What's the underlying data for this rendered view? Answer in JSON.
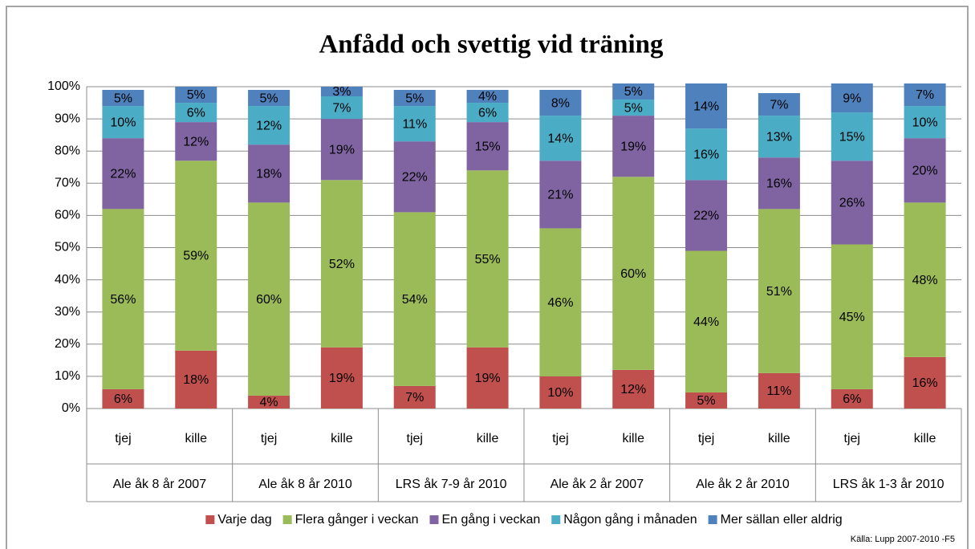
{
  "chart_data": {
    "type": "stacked_bar",
    "title": "Anfådd och svettig vid träning",
    "categories": [
      "tjej",
      "kille",
      "tjej",
      "kille",
      "tjej",
      "kille",
      "tjej",
      "kille",
      "tjej",
      "kille",
      "tjej",
      "kille"
    ],
    "groups": [
      "Ale åk 8 år 2007",
      "Ale åk 8 år 2010",
      "LRS  åk 7-9 år 2010",
      "Ale åk 2 år 2007",
      "Ale åk 2 år 2010",
      "LRS  åk 1-3 år 2010"
    ],
    "series": [
      {
        "name": "Varje dag",
        "color": "#c0504d",
        "values": [
          6,
          18,
          4,
          19,
          7,
          19,
          10,
          12,
          5,
          11,
          6,
          16
        ],
        "value_labels": [
          "6%",
          "18%",
          "4%",
          "19%",
          "7%",
          "19%",
          "10%",
          "12%",
          "5%",
          "11%",
          "6%",
          "16%"
        ]
      },
      {
        "name": "Flera gånger i veckan",
        "color": "#9bbb59",
        "values": [
          56,
          59,
          60,
          52,
          54,
          55,
          46,
          60,
          44,
          51,
          45,
          48
        ],
        "value_labels": [
          "56%",
          "59%",
          "60%",
          "52%",
          "54%",
          "55%",
          "46%",
          "60%",
          "44%",
          "51%",
          "45%",
          "48%"
        ]
      },
      {
        "name": "En gång i veckan",
        "color": "#8064a2",
        "values": [
          22,
          12,
          18,
          19,
          22,
          15,
          21,
          19,
          22,
          16,
          26,
          20
        ],
        "value_labels": [
          "22%",
          "12%",
          "18%",
          "19%",
          "22%",
          "15%",
          "21%",
          "19%",
          "22%",
          "16%",
          "26%",
          "20%"
        ]
      },
      {
        "name": "Någon gång i månaden",
        "color": "#4bacc6",
        "values": [
          10,
          6,
          12,
          7,
          11,
          6,
          14,
          5,
          16,
          13,
          15,
          10
        ],
        "value_labels": [
          "10%",
          "6%",
          "12%",
          "7%",
          "11%",
          "6%",
          "14%",
          "5%",
          "16%",
          "13%",
          "15%",
          "10%"
        ]
      },
      {
        "name": "Mer sällan eller aldrig",
        "color": "#4f81bd",
        "values": [
          5,
          5,
          5,
          3,
          5,
          4,
          8,
          5,
          14,
          7,
          9,
          7
        ],
        "value_labels": [
          "5%",
          "5%",
          "5%",
          "3%",
          "5%",
          "4%",
          "8%",
          "5%",
          "14%",
          "7%",
          "9%",
          "7%"
        ]
      }
    ],
    "ylim": [
      0,
      100
    ],
    "yticks": [
      {
        "value": 0,
        "label": "0%"
      },
      {
        "value": 10,
        "label": "10%"
      },
      {
        "value": 20,
        "label": "20%"
      },
      {
        "value": 30,
        "label": "30%"
      },
      {
        "value": 40,
        "label": "40%"
      },
      {
        "value": 50,
        "label": "50%"
      },
      {
        "value": 60,
        "label": "60%"
      },
      {
        "value": 70,
        "label": "70%"
      },
      {
        "value": 80,
        "label": "80%"
      },
      {
        "value": 90,
        "label": "90%"
      },
      {
        "value": 100,
        "label": "100%"
      }
    ],
    "grid": true,
    "legend": "bottom",
    "source": "Källa: Lupp 2007-2010 -F5"
  }
}
